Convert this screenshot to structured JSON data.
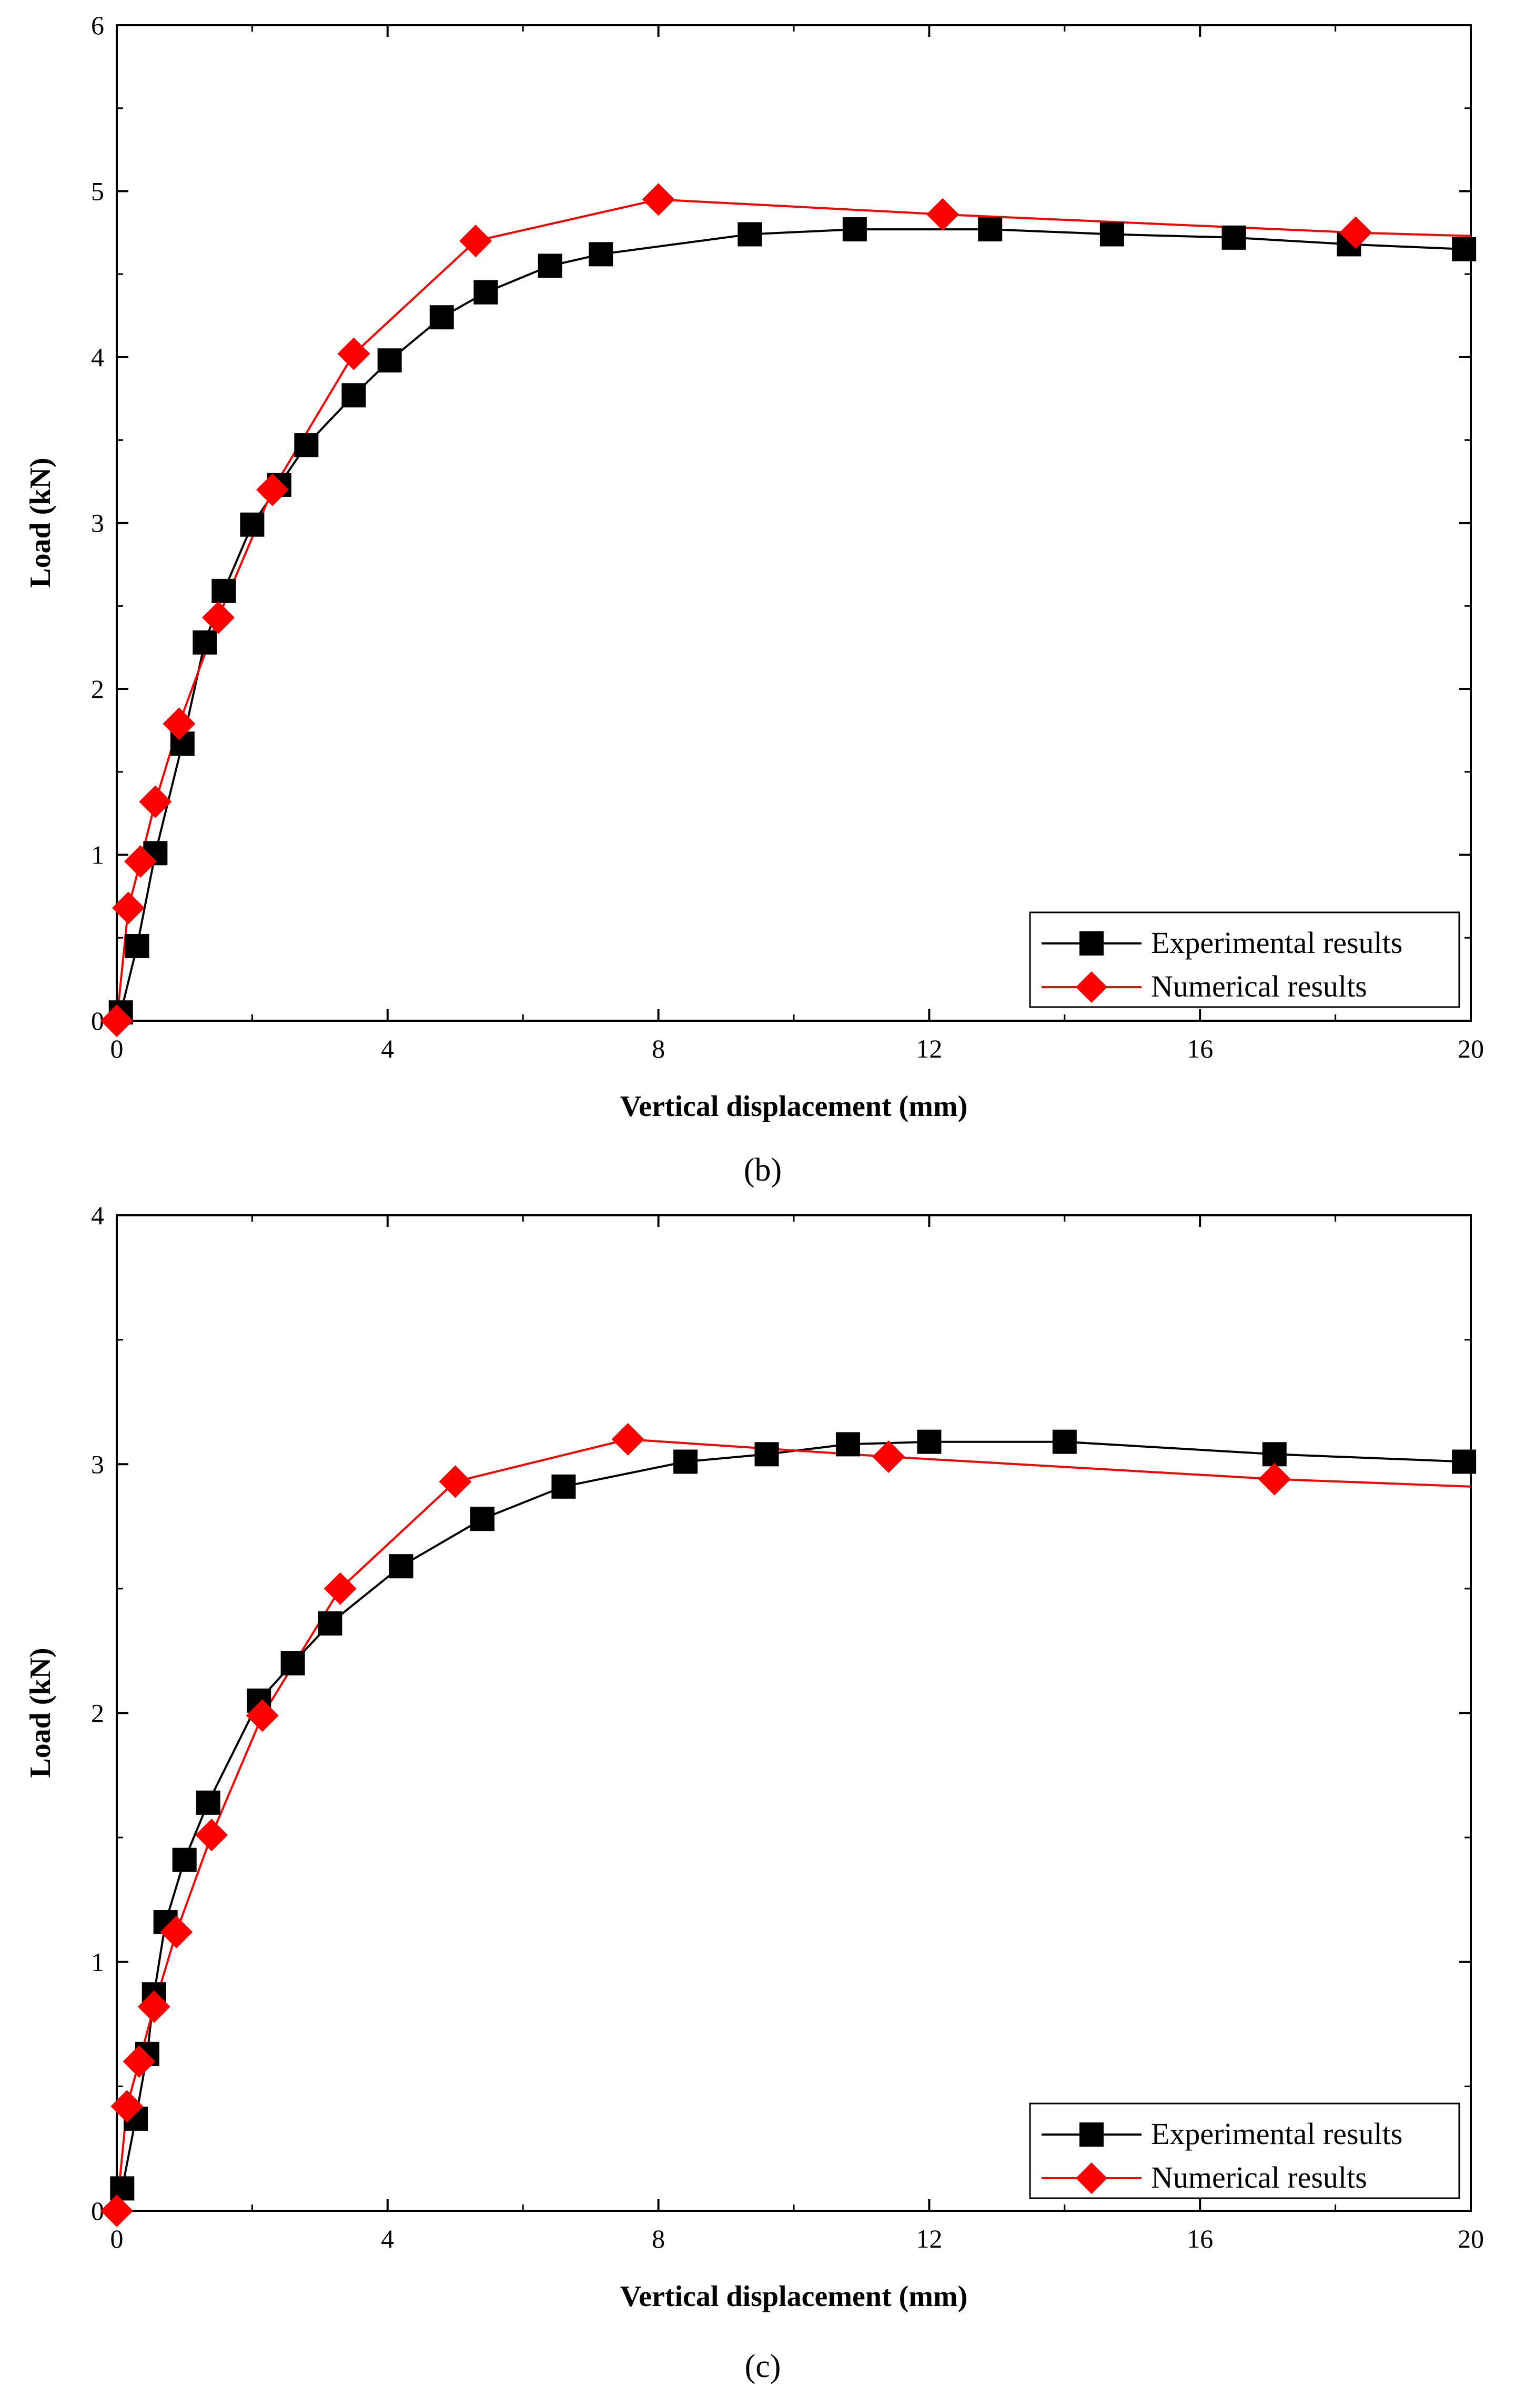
{
  "chart_data": [
    {
      "type": "line",
      "panel_label": "(b)",
      "xlabel": "Vertical displacement (mm)",
      "ylabel": "Load (kN)",
      "xlim": [
        0,
        20
      ],
      "ylim": [
        0,
        6
      ],
      "xticks": [
        0,
        4,
        8,
        12,
        16,
        20
      ],
      "yticks": [
        0,
        1,
        2,
        3,
        4,
        5,
        6
      ],
      "legend_position": "bottom-right",
      "series": [
        {
          "name": "Experimental results",
          "color": "#000000",
          "marker": "square",
          "x": [
            0.06,
            0.3,
            0.57,
            0.97,
            1.3,
            1.58,
            2.0,
            2.4,
            2.8,
            3.5,
            4.03,
            4.8,
            5.45,
            6.4,
            7.15,
            9.35,
            10.9,
            12.9,
            14.7,
            16.5,
            18.2,
            19.9
          ],
          "y": [
            0.05,
            0.45,
            1.01,
            1.67,
            2.28,
            2.59,
            2.99,
            3.23,
            3.47,
            3.77,
            3.98,
            4.24,
            4.39,
            4.55,
            4.62,
            4.74,
            4.77,
            4.77,
            4.74,
            4.72,
            4.68,
            4.65
          ]
        },
        {
          "name": "Numerical results",
          "color": "#ff0000",
          "marker": "diamond",
          "x": [
            0.0,
            0.17,
            0.35,
            0.57,
            0.92,
            1.5,
            2.3,
            3.5,
            5.3,
            8.0,
            12.2,
            18.3,
            20.0
          ],
          "y": [
            0.0,
            0.68,
            0.96,
            1.32,
            1.79,
            2.43,
            3.2,
            4.02,
            4.7,
            4.95,
            4.86,
            4.75,
            4.73
          ],
          "marker_count": 12
        }
      ]
    },
    {
      "type": "line",
      "panel_label": "(c)",
      "xlabel": "Vertical displacement (mm)",
      "ylabel": "Load (kN)",
      "xlim": [
        0,
        20
      ],
      "ylim": [
        0,
        4
      ],
      "xticks": [
        0,
        4,
        8,
        12,
        16,
        20
      ],
      "yticks": [
        0,
        1,
        2,
        3,
        4
      ],
      "legend_position": "bottom-right",
      "series": [
        {
          "name": "Experimental results",
          "color": "#000000",
          "marker": "square",
          "x": [
            0.08,
            0.28,
            0.45,
            0.55,
            0.72,
            1.0,
            1.35,
            2.1,
            2.6,
            3.15,
            4.2,
            5.4,
            6.6,
            8.4,
            9.6,
            10.8,
            12.0,
            14.0,
            17.1,
            19.9
          ],
          "y": [
            0.09,
            0.37,
            0.63,
            0.87,
            1.16,
            1.41,
            1.64,
            2.05,
            2.2,
            2.36,
            2.59,
            2.78,
            2.91,
            3.01,
            3.04,
            3.08,
            3.09,
            3.09,
            3.04,
            3.01
          ],
          "marker_count": 20
        },
        {
          "name": "Numerical results",
          "color": "#ff0000",
          "marker": "diamond",
          "x": [
            0.0,
            0.15,
            0.33,
            0.55,
            0.88,
            1.4,
            2.15,
            3.3,
            5.0,
            7.55,
            11.4,
            17.1,
            20.0
          ],
          "y": [
            0.0,
            0.42,
            0.6,
            0.82,
            1.12,
            1.51,
            1.99,
            2.5,
            2.93,
            3.1,
            3.03,
            2.94,
            2.91
          ],
          "marker_count": 12
        }
      ]
    }
  ]
}
